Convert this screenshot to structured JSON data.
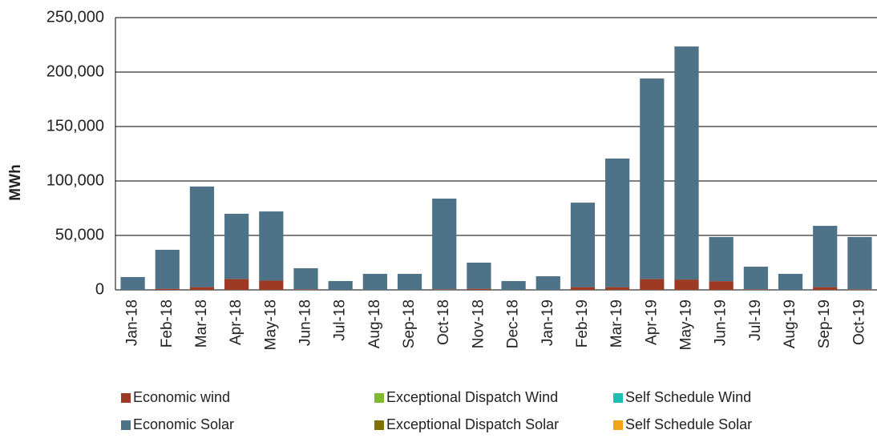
{
  "chart_data": {
    "type": "stacked_bar",
    "y_label": "MWh",
    "categories": [
      "Jan-18",
      "Feb-18",
      "Mar-18",
      "Apr-18",
      "May-18",
      "Jun-18",
      "Jul-18",
      "Aug-18",
      "Sep-18",
      "Oct-18",
      "Nov-18",
      "Dec-18",
      "Jan-19",
      "Feb-19",
      "Mar-19",
      "Apr-19",
      "May-19",
      "Jun-19",
      "Jul-19",
      "Aug-19",
      "Sep-19",
      "Oct-19"
    ],
    "series": [
      {
        "name": "Economic wind",
        "color": "#9c3a24",
        "values": [
          0,
          1000,
          2500,
          10000,
          8500,
          500,
          0,
          0,
          0,
          500,
          1000,
          0,
          0,
          2500,
          2500,
          10000,
          9500,
          8000,
          500,
          0,
          2500,
          500
        ]
      },
      {
        "name": "Exceptional Dispatch Wind",
        "color": "#80bc2a",
        "values": [
          0,
          0,
          0,
          0,
          0,
          0,
          0,
          0,
          0,
          0,
          0,
          0,
          0,
          0,
          0,
          0,
          0,
          0,
          0,
          0,
          0,
          0
        ]
      },
      {
        "name": "Self Schedule Wind",
        "color": "#1ebfb3",
        "values": [
          0,
          0,
          0,
          0,
          0,
          0,
          0,
          0,
          0,
          0,
          0,
          0,
          0,
          0,
          0,
          0,
          0,
          0,
          0,
          0,
          0,
          0
        ]
      },
      {
        "name": "Economic Solar",
        "color": "#4e7288",
        "values": [
          11800,
          35800,
          92400,
          59900,
          63500,
          19400,
          8100,
          14700,
          14700,
          83300,
          24000,
          8100,
          12500,
          77600,
          118100,
          184100,
          214000,
          40500,
          20800,
          14700,
          56300,
          48000
        ]
      },
      {
        "name": "Exceptional Dispatch Solar",
        "color": "#7f7300",
        "values": [
          0,
          0,
          0,
          0,
          0,
          0,
          0,
          0,
          0,
          0,
          0,
          0,
          0,
          0,
          0,
          0,
          0,
          0,
          0,
          0,
          0,
          0
        ]
      },
      {
        "name": "Self Schedule Solar",
        "color": "#f3a21a",
        "values": [
          0,
          0,
          0,
          0,
          0,
          0,
          0,
          0,
          0,
          0,
          0,
          0,
          0,
          0,
          0,
          0,
          0,
          0,
          0,
          0,
          0,
          0
        ]
      }
    ],
    "ylim": [
      0,
      250000
    ],
    "yticks": [
      0,
      {
        "value": 50000,
        "label": "50,000"
      },
      {
        "value": 100000,
        "label": "100,000"
      },
      {
        "value": 150000,
        "label": "150,000"
      },
      {
        "value": 200000,
        "label": "200,000"
      },
      {
        "value": 250000,
        "label": "250,000"
      }
    ],
    "grid": true
  }
}
